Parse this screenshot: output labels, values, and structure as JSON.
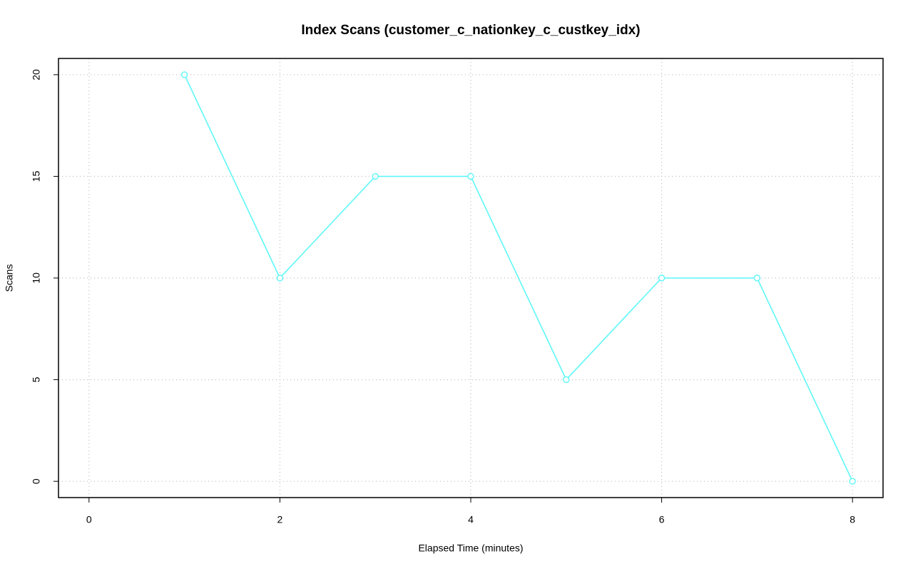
{
  "chart_data": {
    "type": "line",
    "title": "Index Scans (customer_c_nationkey_c_custkey_idx)",
    "xlabel": "Elapsed Time (minutes)",
    "ylabel": "Scans",
    "x": [
      1,
      2,
      3,
      4,
      5,
      6,
      7,
      8
    ],
    "values": [
      20,
      10,
      15,
      15,
      5,
      10,
      10,
      0
    ],
    "color": "#5ff7f7",
    "xlim": [
      -0.32,
      8.32
    ],
    "ylim": [
      -0.8,
      20.8
    ],
    "xticks": [
      0,
      2,
      4,
      6,
      8
    ],
    "yticks": [
      0,
      5,
      10,
      15,
      20
    ],
    "grid": true
  }
}
